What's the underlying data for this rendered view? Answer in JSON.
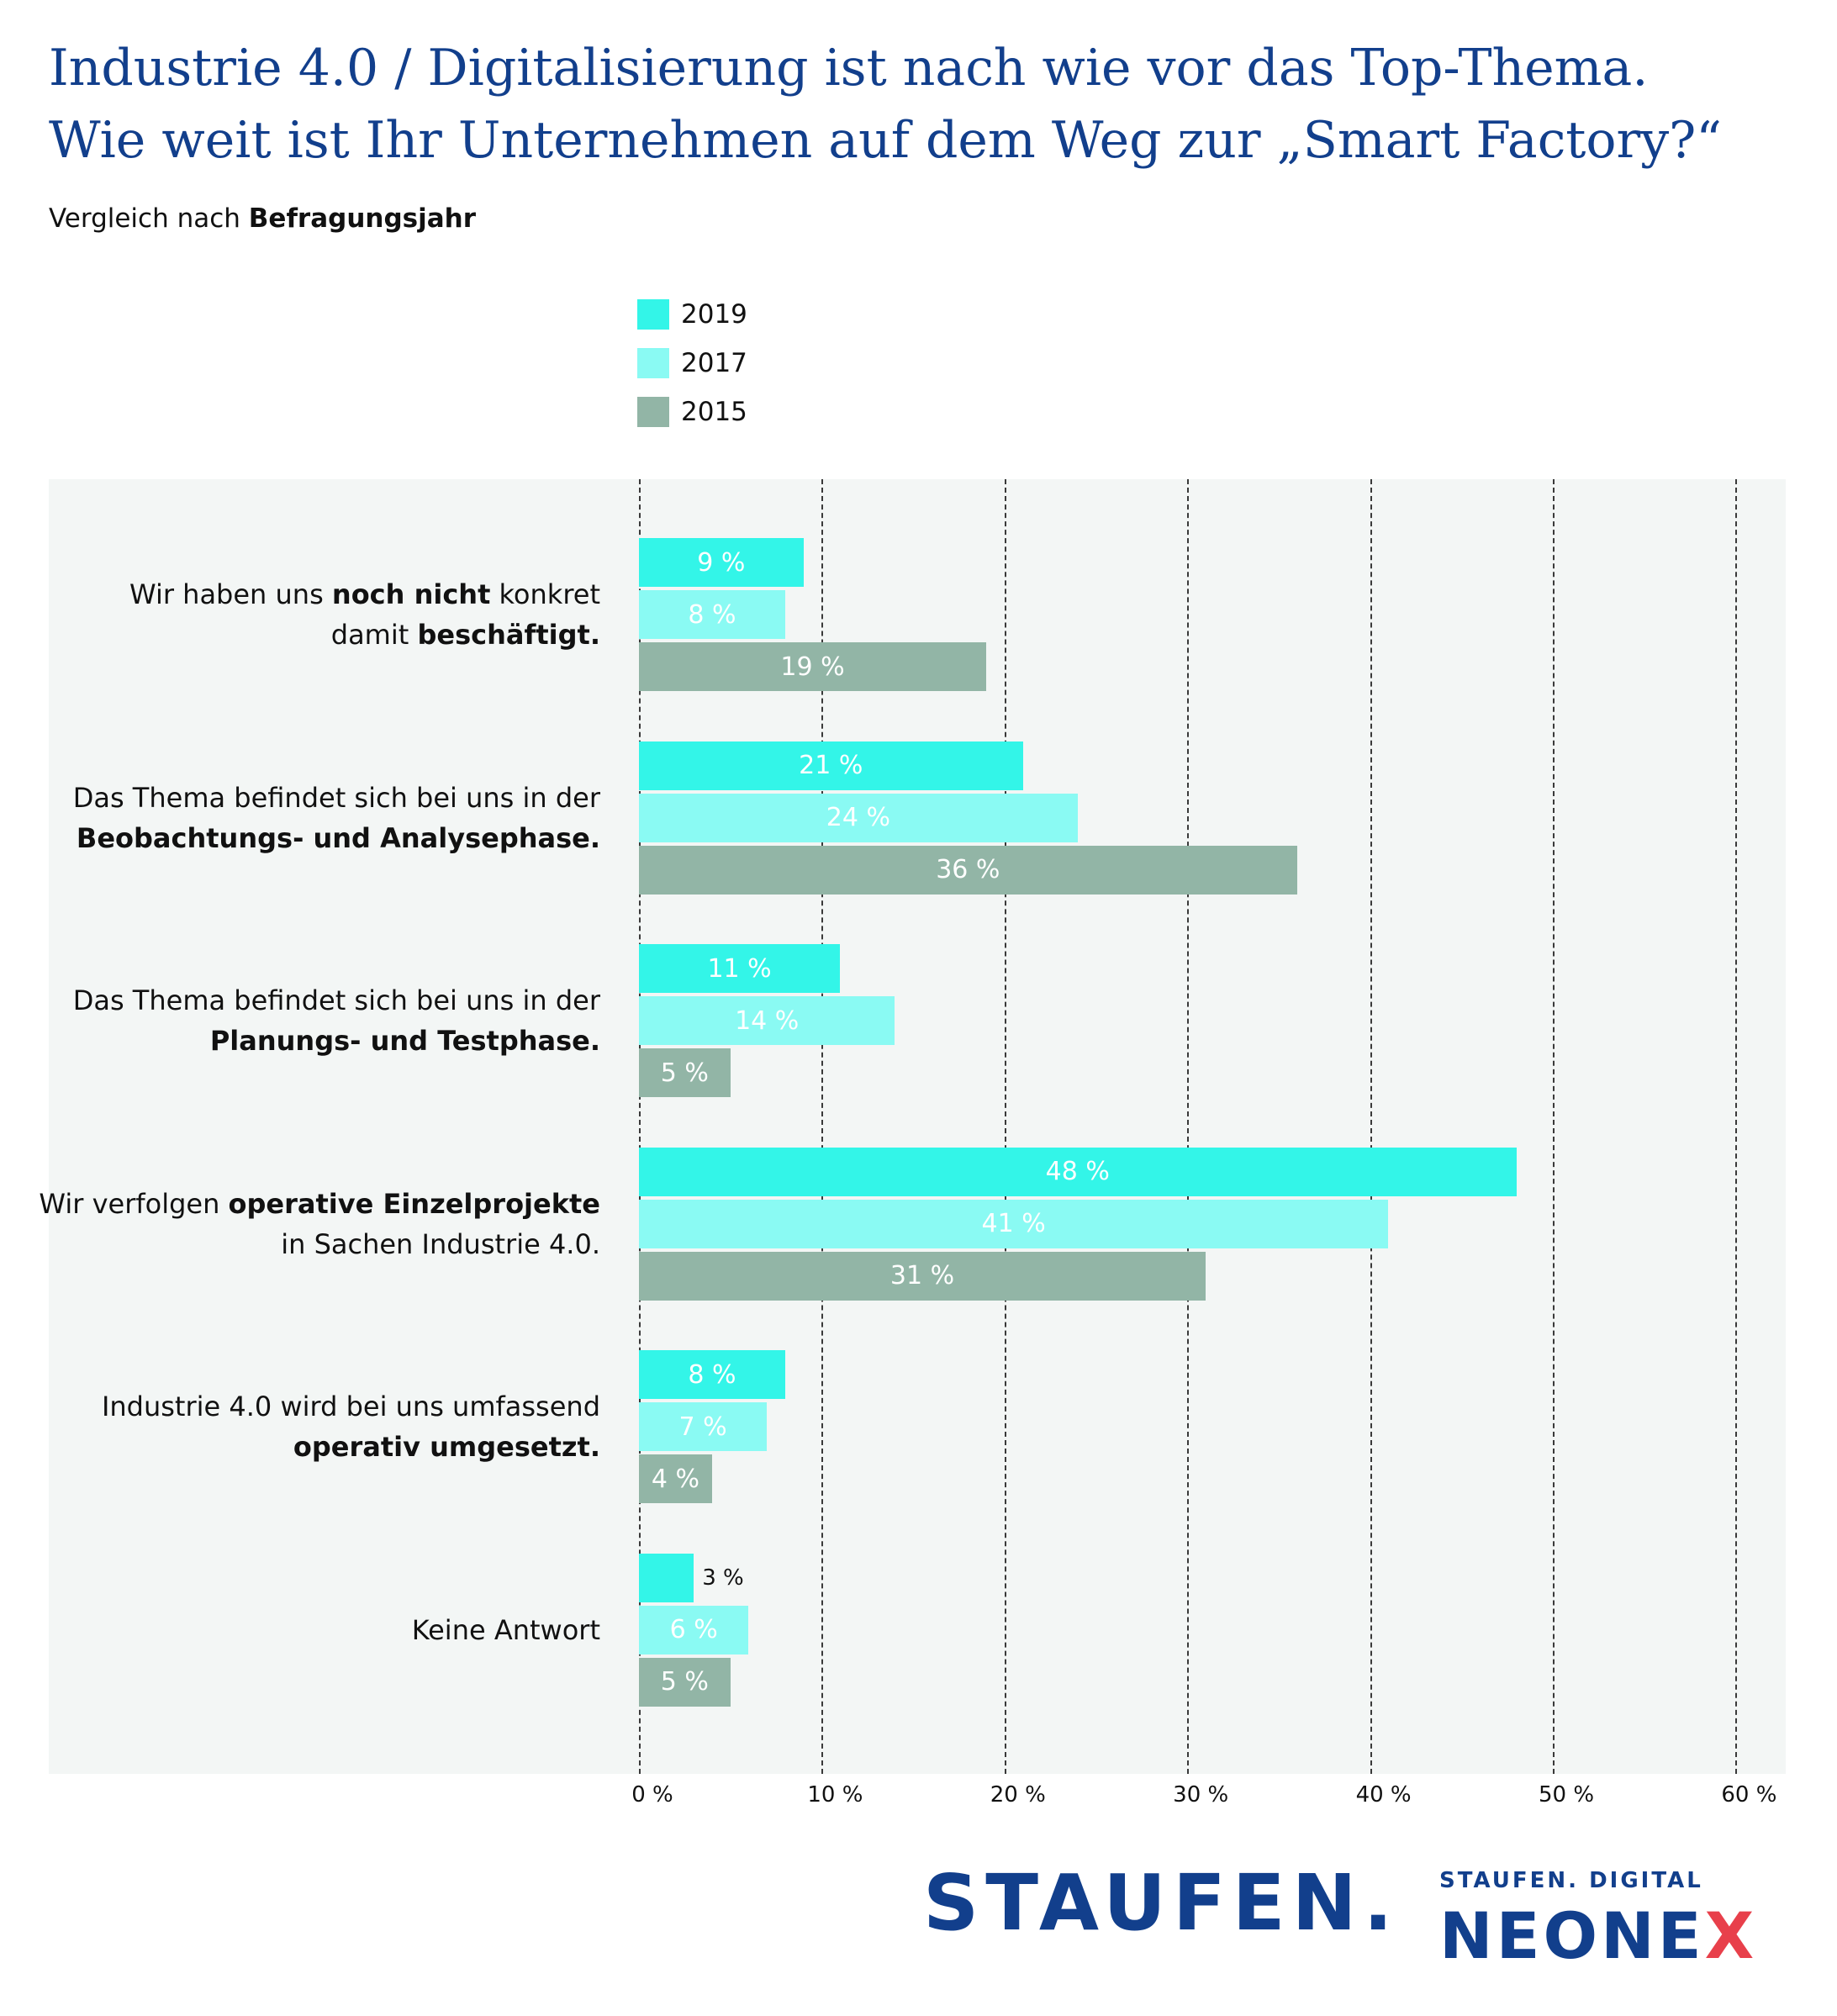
{
  "header": {
    "title_line1": "Industrie 4.0 / Digitalisierung ist nach wie vor das Top-Thema.",
    "title_line2": "Wie weit ist Ihr Unternehmen auf dem Weg zur „Smart Factory?“",
    "subtitle_prefix": "Vergleich nach ",
    "subtitle_bold": "Befragungsjahr"
  },
  "chart_data": {
    "type": "bar",
    "orientation": "horizontal",
    "categories": [
      [
        {
          "t": "Wir haben uns ",
          "b": false
        },
        {
          "t": "noch nicht",
          "b": true
        },
        {
          "t": " konkret",
          "b": false
        },
        {
          "br": true
        },
        {
          "t": "damit ",
          "b": false
        },
        {
          "t": "beschäftigt.",
          "b": true
        }
      ],
      [
        {
          "t": "Das Thema befindet sich bei uns in der",
          "b": false
        },
        {
          "br": true
        },
        {
          "t": "Beobachtungs- und Analysephase.",
          "b": true
        }
      ],
      [
        {
          "t": "Das Thema befindet sich bei uns in der",
          "b": false
        },
        {
          "br": true
        },
        {
          "t": "Planungs- und Testphase.",
          "b": true
        }
      ],
      [
        {
          "t": "Wir verfolgen ",
          "b": false
        },
        {
          "t": "operative Einzelprojekte",
          "b": true
        },
        {
          "br": true
        },
        {
          "t": "in Sachen Industrie 4.0.",
          "b": false
        }
      ],
      [
        {
          "t": "Industrie 4.0 wird bei uns umfassend",
          "b": false
        },
        {
          "br": true
        },
        {
          "t": "operativ umgesetzt.",
          "b": true
        }
      ],
      [
        {
          "t": "Keine Antwort",
          "b": false
        }
      ]
    ],
    "series": [
      {
        "name": "2019",
        "color": "#33f5e8",
        "values": [
          9,
          21,
          11,
          48,
          8,
          3
        ],
        "labels": [
          "9 %",
          "21 %",
          "11 %",
          "48 %",
          "8 %",
          "3 %"
        ]
      },
      {
        "name": "2017",
        "color": "#8afaf3",
        "values": [
          8,
          24,
          14,
          41,
          7,
          6
        ],
        "labels": [
          "8 %",
          "24 %",
          "14 %",
          "41 %",
          "7 %",
          "6 %"
        ]
      },
      {
        "name": "2015",
        "color": "#92b5a6",
        "values": [
          19,
          36,
          5,
          31,
          4,
          5
        ],
        "labels": [
          "19 %",
          "36 %",
          "5 %",
          "31 %",
          "4 %",
          "5 %"
        ]
      }
    ],
    "xlim": [
      0,
      60
    ],
    "ticks": [
      0,
      10,
      20,
      30,
      40,
      50,
      60
    ],
    "tick_labels": [
      "0 %",
      "10 %",
      "20 %",
      "30 %",
      "40 %",
      "50 %",
      "60 %"
    ],
    "grid": true,
    "legend_position": "top-center"
  },
  "logos": {
    "staufen": "STAUFEN.",
    "digital": "STAUFEN. DIGITAL",
    "neonex_main": "NEONE",
    "neonex_x": "X"
  }
}
